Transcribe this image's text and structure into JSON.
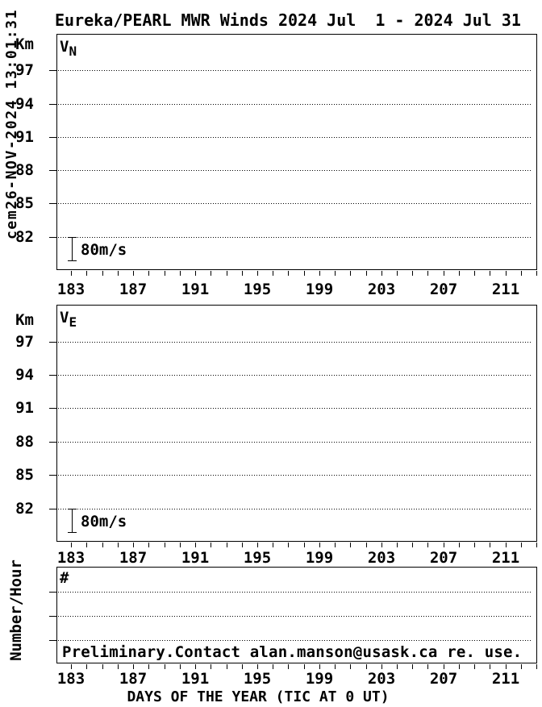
{
  "watermark_timestamp": "cem26-NOV-2024 13:01:31",
  "title": "Eureka/PEARL MWR Winds 2024 Jul  1 - 2024 Jul 31",
  "xlabel": "DAYS OF THE YEAR (TIC AT 0 UT)",
  "chart_data": [
    {
      "type": "line",
      "panel_label_main": "V",
      "panel_label_sub": "N",
      "ylabel_unit": "Km",
      "yticks": [
        97,
        94,
        91,
        88,
        85,
        82
      ],
      "ylim": [
        79.0,
        100.3
      ],
      "xlim": [
        182.05,
        213.05
      ],
      "xticks_major": [
        183,
        187,
        191,
        195,
        199,
        203,
        207,
        211
      ],
      "xtick_minor_interval": 1,
      "grid": "horizontal-dotted",
      "scale_bar_label": "80m/s",
      "series": []
    },
    {
      "type": "line",
      "panel_label_main": "V",
      "panel_label_sub": "E",
      "ylabel_unit": "Km",
      "yticks": [
        97,
        94,
        91,
        88,
        85,
        82
      ],
      "ylim": [
        79.0,
        100.3
      ],
      "xlim": [
        182.05,
        213.05
      ],
      "xticks_major": [
        183,
        187,
        191,
        195,
        199,
        203,
        207,
        211
      ],
      "xtick_minor_interval": 1,
      "grid": "horizontal-dotted",
      "scale_bar_label": "80m/s",
      "series": []
    },
    {
      "type": "line",
      "panel_label_main": "#",
      "panel_label_sub": "",
      "ylabel_unit": "Number/Hour",
      "yticks": [],
      "gridlines_unlabeled": 3,
      "xlim": [
        182.05,
        213.05
      ],
      "xticks_major": [
        183,
        187,
        191,
        195,
        199,
        203,
        207,
        211
      ],
      "xtick_minor_interval": 1,
      "grid": "horizontal-dotted",
      "annotation": "Preliminary.Contact alan.manson@usask.ca re. use.",
      "series": []
    }
  ]
}
